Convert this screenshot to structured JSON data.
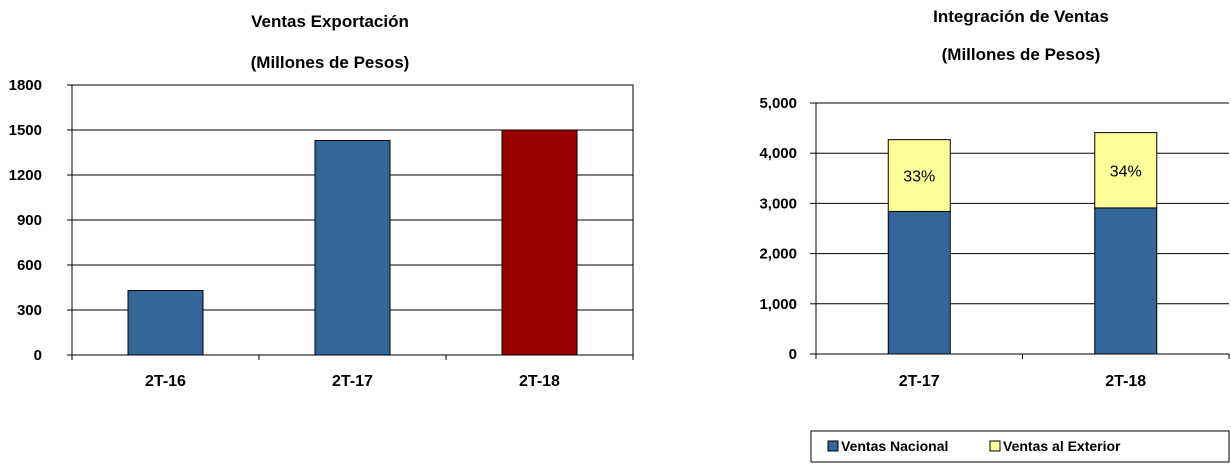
{
  "colors": {
    "nacional": "#336699",
    "exterior": "#ffff99",
    "highlight": "#990000",
    "grid": "#000000"
  },
  "chart_data": [
    {
      "type": "bar",
      "title": "Ventas Exportación",
      "subtitle": "(Millones de Pesos)",
      "categories": [
        "2T-16",
        "2T-17",
        "2T-18"
      ],
      "values": [
        430,
        1430,
        1500
      ],
      "bar_colors": [
        "#336699",
        "#336699",
        "#990000"
      ],
      "ylim": [
        0,
        1800
      ],
      "yticks": [
        "0",
        "300",
        "600",
        "900",
        "1200",
        "1500",
        "1800"
      ],
      "ytick_values": [
        0,
        300,
        600,
        900,
        1200,
        1500,
        1800
      ],
      "grid": true,
      "legend": "none"
    },
    {
      "type": "bar",
      "stacked": true,
      "title": "Integración de Ventas",
      "subtitle": "(Millones de Pesos)",
      "categories": [
        "2T-17",
        "2T-18"
      ],
      "series": [
        {
          "name": "Ventas Nacional",
          "values": [
            2840,
            2910
          ],
          "color": "#336699"
        },
        {
          "name": "Ventas al Exterior",
          "values": [
            1430,
            1500
          ],
          "color": "#ffff99",
          "data_labels": [
            "33%",
            "34%"
          ]
        }
      ],
      "ylim": [
        0,
        5000
      ],
      "yticks": [
        "0",
        "1,000",
        "2,000",
        "3,000",
        "4,000",
        "5,000"
      ],
      "ytick_values": [
        0,
        1000,
        2000,
        3000,
        4000,
        5000
      ],
      "grid": true,
      "legend": "bottom-right"
    }
  ]
}
